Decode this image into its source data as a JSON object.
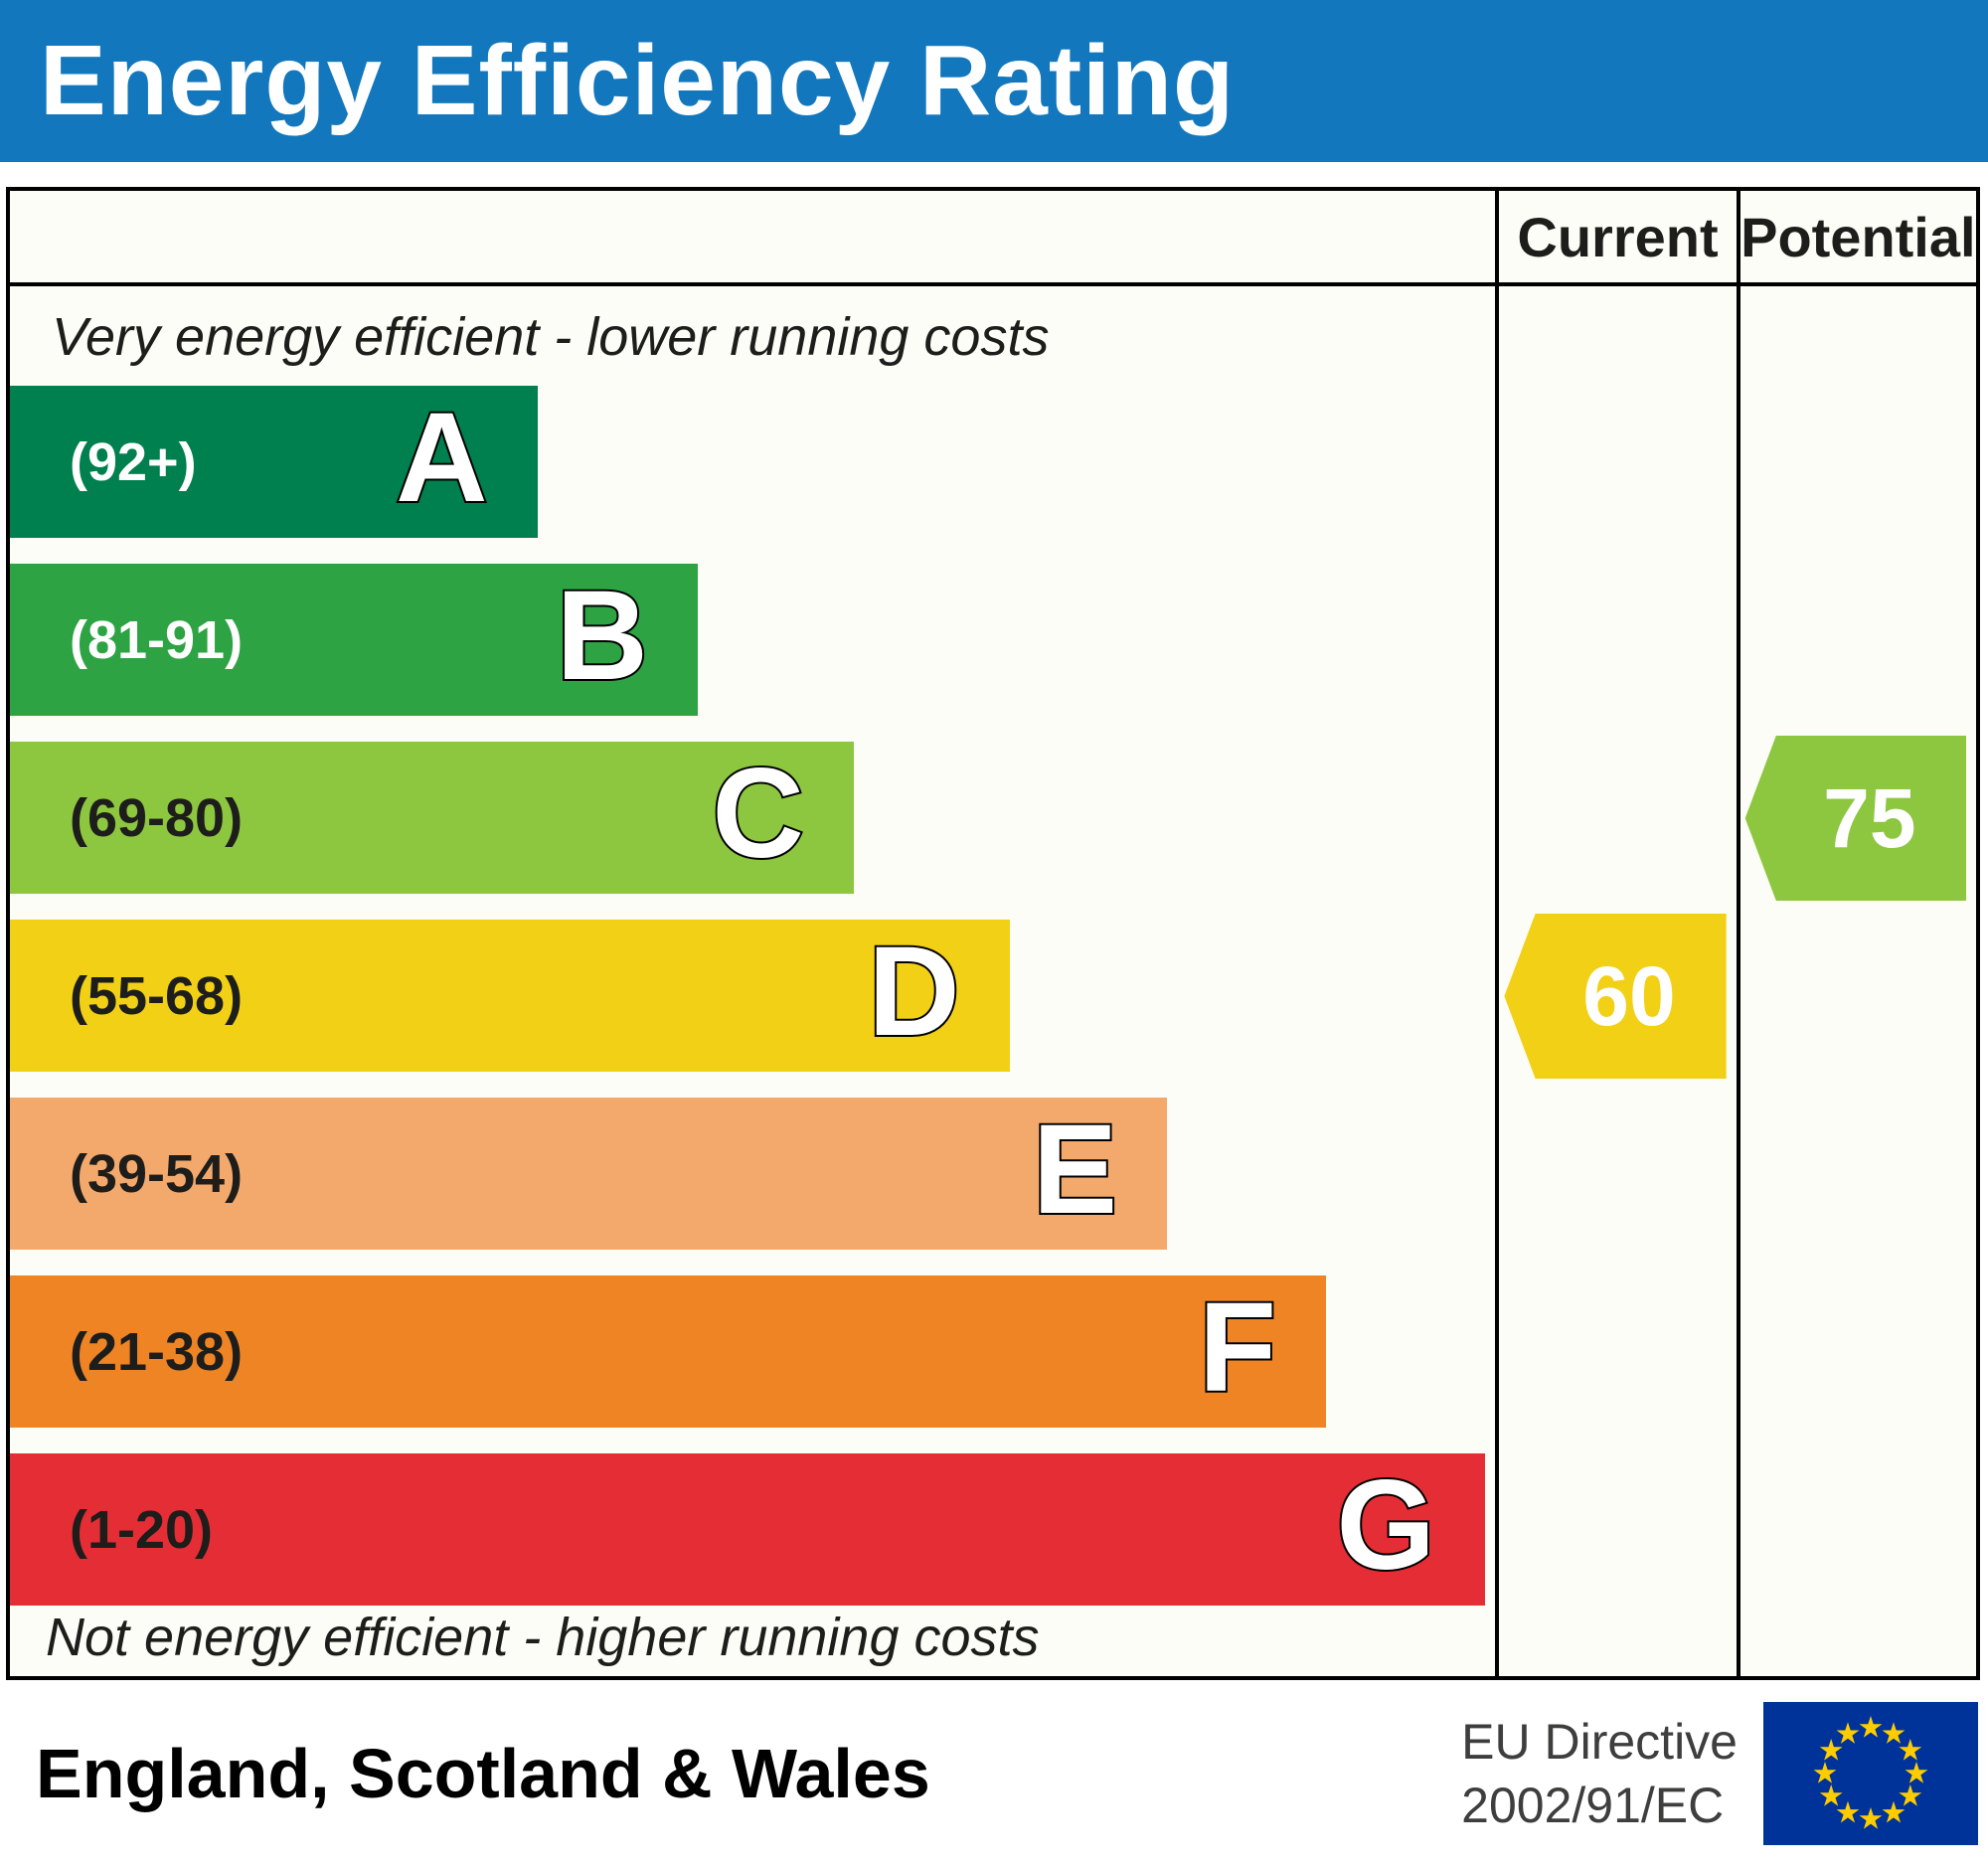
{
  "title": "Energy Efficiency Rating",
  "title_bar_color": "#1277bd",
  "header": {
    "current": "Current",
    "potential": "Potential"
  },
  "notes": {
    "top": "Very energy efficient - lower running costs",
    "bottom": "Not energy efficient - higher running costs"
  },
  "bands": [
    {
      "letter": "A",
      "range": "(92+)",
      "color": "#00804e",
      "label_color": "#ffffff",
      "width_pct": 35.5
    },
    {
      "letter": "B",
      "range": "(81-91)",
      "color": "#2da343",
      "label_color": "#ffffff",
      "width_pct": 46.3
    },
    {
      "letter": "C",
      "range": "(69-80)",
      "color": "#8dc63f",
      "label_color": "#1d1d1b",
      "width_pct": 56.8
    },
    {
      "letter": "D",
      "range": "(55-68)",
      "color": "#f1d015",
      "label_color": "#1d1d1b",
      "width_pct": 67.3
    },
    {
      "letter": "E",
      "range": "(39-54)",
      "color": "#f4a96c",
      "label_color": "#1d1d1b",
      "width_pct": 77.9
    },
    {
      "letter": "F",
      "range": "(21-38)",
      "color": "#ee8424",
      "label_color": "#1d1d1b",
      "width_pct": 88.6
    },
    {
      "letter": "G",
      "range": "(1-20)",
      "color": "#e42d34",
      "label_color": "#1d1d1b",
      "width_pct": 99.3
    }
  ],
  "ratings": {
    "current": {
      "value": "60",
      "band_index": 3,
      "color": "#f1d015"
    },
    "potential": {
      "value": "75",
      "band_index": 2,
      "color": "#8dc63f"
    }
  },
  "footer": {
    "region": "England, Scotland & Wales",
    "directive_line1": "EU Directive",
    "directive_line2": "2002/91/EC",
    "flag": {
      "background": "#003399",
      "star_color": "#ffcc00"
    }
  },
  "chart_data": {
    "type": "bar",
    "title": "Energy Efficiency Rating",
    "categories": [
      "A (92+)",
      "B (81-91)",
      "C (69-80)",
      "D (55-68)",
      "E (39-54)",
      "F (21-38)",
      "G (1-20)"
    ],
    "values": [
      35.5,
      46.3,
      56.8,
      67.3,
      77.9,
      88.6,
      99.3
    ],
    "series_note": "bar lengths are fixed band widths (% of rating column); ratings are the data markers",
    "markers": [
      {
        "name": "Current",
        "value": 60,
        "band": "D",
        "color": "#f1d015"
      },
      {
        "name": "Potential",
        "value": 75,
        "band": "C",
        "color": "#8dc63f"
      }
    ],
    "xlabel": "",
    "ylabel": "",
    "annotations": [
      "Very energy efficient - lower running costs",
      "Not energy efficient - higher running costs",
      "England, Scotland & Wales",
      "EU Directive 2002/91/EC"
    ],
    "legend_position": "none",
    "grid": false
  }
}
